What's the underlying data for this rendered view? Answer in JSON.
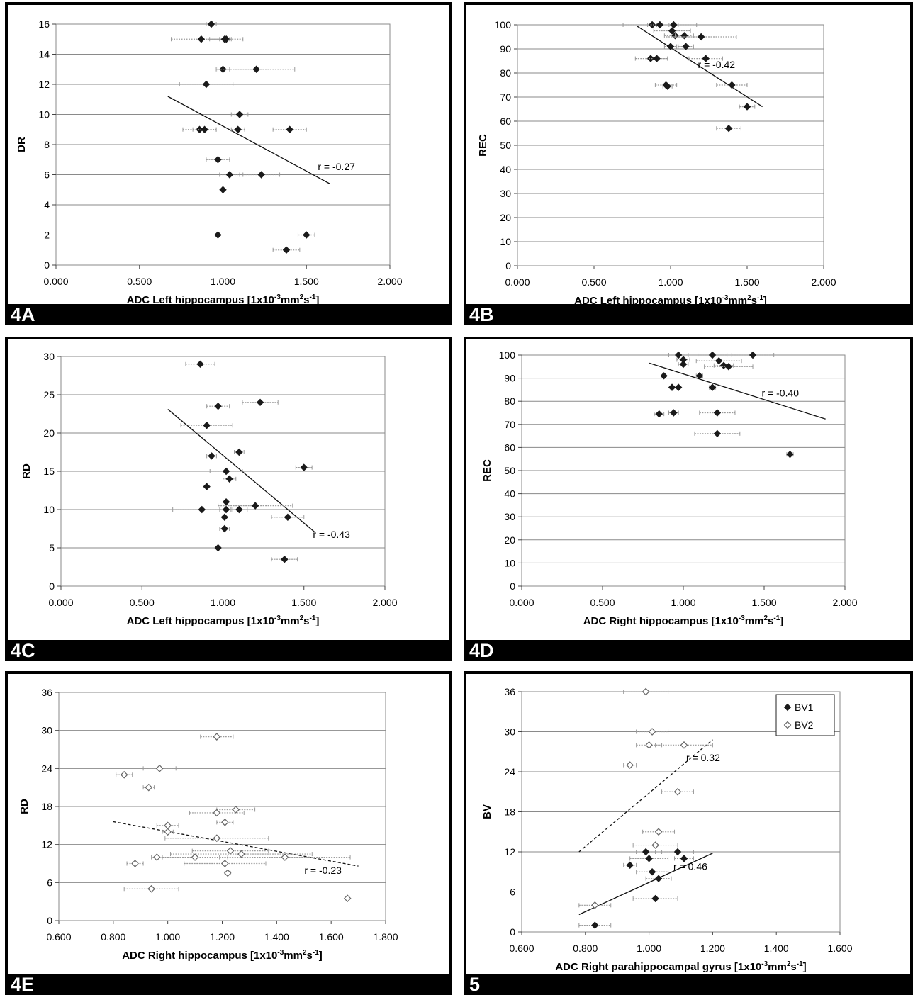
{
  "chart_data": [
    {
      "id": "4A",
      "type": "scatter",
      "panel_label": "4A",
      "ylabel": "DR",
      "xlabel": "ADC Left hippocampus [1x10",
      "xlabel_sup1": "-3",
      "xlabel_mid": "mm",
      "xlabel_sup2": "2",
      "xlabel_mid2": "s",
      "xlabel_sup3": "-1",
      "xlabel_end": "]",
      "xlim": [
        0,
        2
      ],
      "ylim": [
        0,
        16
      ],
      "xticks": [
        "0.000",
        "0.500",
        "1.000",
        "1.500",
        "2.000"
      ],
      "yticks": [
        "0",
        "2",
        "4",
        "6",
        "8",
        "10",
        "12",
        "14",
        "16"
      ],
      "grid": true,
      "series": [
        {
          "marker": "filled-diamond",
          "points": [
            {
              "x": 0.93,
              "y": 16,
              "xerr": 0.03
            },
            {
              "x": 0.87,
              "y": 15,
              "xerr": 0.18
            },
            {
              "x": 1.02,
              "y": 15,
              "xerr": 0.1
            },
            {
              "x": 1.01,
              "y": 15,
              "xerr": 0.03
            },
            {
              "x": 1.0,
              "y": 13,
              "xerr": 0.04
            },
            {
              "x": 1.2,
              "y": 13,
              "xerr": 0.23
            },
            {
              "x": 0.9,
              "y": 12,
              "xerr": 0.16
            },
            {
              "x": 1.1,
              "y": 10,
              "xerr": 0.05
            },
            {
              "x": 0.86,
              "y": 9,
              "xerr": 0.1
            },
            {
              "x": 0.89,
              "y": 9,
              "xerr": 0.07
            },
            {
              "x": 1.09,
              "y": 9,
              "xerr": 0.04
            },
            {
              "x": 1.4,
              "y": 9,
              "xerr": 0.1
            },
            {
              "x": 0.97,
              "y": 7,
              "xerr": 0.07
            },
            {
              "x": 1.04,
              "y": 6,
              "xerr": 0.06
            },
            {
              "x": 1.23,
              "y": 6,
              "xerr": 0.11
            },
            {
              "x": 1.0,
              "y": 5,
              "xerr": 0.0
            },
            {
              "x": 0.97,
              "y": 2,
              "xerr": 0.0
            },
            {
              "x": 1.5,
              "y": 2,
              "xerr": 0.05
            },
            {
              "x": 1.38,
              "y": 1,
              "xerr": 0.08
            }
          ]
        }
      ],
      "trendlines": [
        {
          "x1": 0.67,
          "y1": 11.2,
          "x2": 1.64,
          "y2": 5.4,
          "dashed": false
        }
      ],
      "annotations": [
        {
          "text": "r = -0.27",
          "x": 1.68,
          "y": 6.3
        }
      ]
    },
    {
      "id": "4B",
      "type": "scatter",
      "panel_label": "4B",
      "ylabel": "REC",
      "xlabel": "ADC Left hippocampus [1x10",
      "xlabel_sup1": "-3",
      "xlabel_mid": "mm",
      "xlabel_sup2": "2",
      "xlabel_mid2": "s",
      "xlabel_sup3": "-1",
      "xlabel_end": "]",
      "xlim": [
        0,
        2
      ],
      "ylim": [
        0,
        100
      ],
      "xticks": [
        "0.000",
        "0.500",
        "1.000",
        "1.500",
        "2.000"
      ],
      "yticks": [
        "0",
        "10",
        "20",
        "30",
        "40",
        "50",
        "60",
        "70",
        "80",
        "90",
        "100"
      ],
      "grid": true,
      "series": [
        {
          "marker": "filled-diamond",
          "points": [
            {
              "x": 0.88,
              "y": 100,
              "xerr": 0.03
            },
            {
              "x": 0.93,
              "y": 100,
              "xerr": 0.24
            },
            {
              "x": 1.02,
              "y": 100,
              "xerr": 0.03
            },
            {
              "x": 1.01,
              "y": 97.5,
              "xerr": 0.12
            },
            {
              "x": 1.03,
              "y": 95.5,
              "xerr": 0.07
            },
            {
              "x": 1.09,
              "y": 95.5,
              "xerr": 0.06
            },
            {
              "x": 1.2,
              "y": 95,
              "xerr": 0.23
            },
            {
              "x": 1.1,
              "y": 91,
              "xerr": 0.05
            },
            {
              "x": 1.0,
              "y": 91,
              "xerr": 0.04
            },
            {
              "x": 0.87,
              "y": 86,
              "xerr": 0.1
            },
            {
              "x": 0.91,
              "y": 86,
              "xerr": 0.07
            },
            {
              "x": 1.23,
              "y": 86,
              "xerr": 0.11
            },
            {
              "x": 0.97,
              "y": 75,
              "xerr": 0.07
            },
            {
              "x": 0.98,
              "y": 74.5,
              "xerr": 0.03
            },
            {
              "x": 1.4,
              "y": 75,
              "xerr": 0.1
            },
            {
              "x": 1.5,
              "y": 66,
              "xerr": 0.05
            },
            {
              "x": 1.38,
              "y": 57,
              "xerr": 0.08
            }
          ]
        }
      ],
      "trendlines": [
        {
          "x1": 0.78,
          "y1": 99.5,
          "x2": 1.6,
          "y2": 66,
          "dashed": false
        }
      ],
      "annotations": [
        {
          "text": "r = -0.42",
          "x": 1.3,
          "y": 82
        }
      ]
    },
    {
      "id": "4C",
      "type": "scatter",
      "panel_label": "4C",
      "ylabel": "RD",
      "xlabel": "ADC Left hippocampus [1x10",
      "xlabel_sup1": "-3",
      "xlabel_mid": "mm",
      "xlabel_sup2": "2",
      "xlabel_mid2": "s",
      "xlabel_sup3": "-1",
      "xlabel_end": "]",
      "xlim": [
        0,
        2
      ],
      "ylim": [
        0,
        30
      ],
      "xticks": [
        "0.000",
        "0.500",
        "1.000",
        "1.500",
        "2.000"
      ],
      "yticks": [
        "0",
        "5",
        "10",
        "15",
        "20",
        "25",
        "30"
      ],
      "grid": true,
      "series": [
        {
          "marker": "filled-diamond",
          "points": [
            {
              "x": 0.86,
              "y": 29,
              "xerr": 0.09
            },
            {
              "x": 0.97,
              "y": 23.5,
              "xerr": 0.07
            },
            {
              "x": 1.23,
              "y": 24,
              "xerr": 0.11
            },
            {
              "x": 0.9,
              "y": 21,
              "xerr": 0.16
            },
            {
              "x": 1.1,
              "y": 17.5,
              "xerr": 0.03
            },
            {
              "x": 0.93,
              "y": 17,
              "xerr": 0.03
            },
            {
              "x": 1.02,
              "y": 15,
              "xerr": 0.1
            },
            {
              "x": 1.5,
              "y": 15.5,
              "xerr": 0.05
            },
            {
              "x": 1.04,
              "y": 14,
              "xerr": 0.04
            },
            {
              "x": 0.9,
              "y": 13,
              "xerr": 0.0
            },
            {
              "x": 1.02,
              "y": 11,
              "xerr": 0.0
            },
            {
              "x": 1.2,
              "y": 10.5,
              "xerr": 0.23
            },
            {
              "x": 0.87,
              "y": 10,
              "xerr": 0.18
            },
            {
              "x": 1.02,
              "y": 10,
              "xerr": 0.04
            },
            {
              "x": 1.1,
              "y": 10,
              "xerr": 0.05
            },
            {
              "x": 1.01,
              "y": 9,
              "xerr": 0.0
            },
            {
              "x": 1.4,
              "y": 9,
              "xerr": 0.1
            },
            {
              "x": 1.01,
              "y": 7.5,
              "xerr": 0.03
            },
            {
              "x": 0.97,
              "y": 5,
              "xerr": 0.0
            },
            {
              "x": 1.38,
              "y": 3.5,
              "xerr": 0.08
            }
          ]
        }
      ],
      "trendlines": [
        {
          "x1": 0.66,
          "y1": 23.1,
          "x2": 1.57,
          "y2": 7,
          "dashed": false
        }
      ],
      "annotations": [
        {
          "text": "r =  -0.43",
          "x": 1.67,
          "y": 6.3
        }
      ]
    },
    {
      "id": "4D",
      "type": "scatter",
      "panel_label": "4D",
      "ylabel": "REC",
      "xlabel": "ADC Right hippocampus [1x10",
      "xlabel_sup1": "-3",
      "xlabel_mid": "mm",
      "xlabel_sup2": "2",
      "xlabel_mid2": "s",
      "xlabel_sup3": "-1",
      "xlabel_end": "]",
      "xlim": [
        0,
        2
      ],
      "ylim": [
        0,
        100
      ],
      "xticks": [
        "0.000",
        "0.500",
        "1.000",
        "1.500",
        "2.000"
      ],
      "yticks": [
        "0",
        "10",
        "20",
        "30",
        "40",
        "50",
        "60",
        "70",
        "80",
        "90",
        "100"
      ],
      "grid": true,
      "series": [
        {
          "marker": "filled-diamond",
          "points": [
            {
              "x": 0.97,
              "y": 100,
              "xerr": 0.06
            },
            {
              "x": 1.18,
              "y": 100,
              "xerr": 0.09
            },
            {
              "x": 1.43,
              "y": 100,
              "xerr": 0.13
            },
            {
              "x": 1.0,
              "y": 98,
              "xerr": 0.04
            },
            {
              "x": 1.22,
              "y": 97.5,
              "xerr": 0.14
            },
            {
              "x": 1.0,
              "y": 96,
              "xerr": 0.03
            },
            {
              "x": 1.25,
              "y": 95.5,
              "xerr": 0.06
            },
            {
              "x": 1.28,
              "y": 95,
              "xerr": 0.15
            },
            {
              "x": 0.88,
              "y": 91,
              "xerr": 0.01
            },
            {
              "x": 1.1,
              "y": 91,
              "xerr": 0.02
            },
            {
              "x": 0.93,
              "y": 86,
              "xerr": 0.0
            },
            {
              "x": 0.97,
              "y": 86,
              "xerr": 0.0
            },
            {
              "x": 1.18,
              "y": 86,
              "xerr": 0.02
            },
            {
              "x": 0.85,
              "y": 74.5,
              "xerr": 0.03
            },
            {
              "x": 0.94,
              "y": 75,
              "xerr": 0.03
            },
            {
              "x": 1.21,
              "y": 75,
              "xerr": 0.11
            },
            {
              "x": 1.21,
              "y": 66,
              "xerr": 0.14
            },
            {
              "x": 1.66,
              "y": 57,
              "xerr": 0.02
            }
          ]
        }
      ],
      "trendlines": [
        {
          "x1": 0.79,
          "y1": 96.5,
          "x2": 1.88,
          "y2": 72.3,
          "dashed": false
        }
      ],
      "annotations": [
        {
          "text": "r = -0.40",
          "x": 1.6,
          "y": 82
        }
      ]
    },
    {
      "id": "4E",
      "type": "scatter",
      "panel_label": "4E",
      "ylabel": "RD",
      "xlabel": "ADC Right hippocampus [1x10",
      "xlabel_sup1": "-3",
      "xlabel_mid": "mm",
      "xlabel_sup2": "2",
      "xlabel_mid2": "s",
      "xlabel_sup3": "-1",
      "xlabel_end": "]",
      "xlim": [
        0.6,
        1.8
      ],
      "ylim": [
        0,
        36
      ],
      "xticks": [
        "0.600",
        "0.800",
        "1.000",
        "1.200",
        "1.400",
        "1.600",
        "1.800"
      ],
      "yticks": [
        "0",
        "6",
        "12",
        "18",
        "24",
        "30",
        "36"
      ],
      "grid": true,
      "series": [
        {
          "marker": "open-diamond",
          "points": [
            {
              "x": 1.18,
              "y": 29,
              "xerr": 0.06
            },
            {
              "x": 0.97,
              "y": 24,
              "xerr": 0.06
            },
            {
              "x": 0.84,
              "y": 23,
              "xerr": 0.03
            },
            {
              "x": 0.93,
              "y": 21,
              "xerr": 0.02
            },
            {
              "x": 1.25,
              "y": 17.5,
              "xerr": 0.07
            },
            {
              "x": 1.18,
              "y": 17,
              "xerr": 0.1
            },
            {
              "x": 1.21,
              "y": 15.5,
              "xerr": 0.03
            },
            {
              "x": 1.0,
              "y": 15,
              "xerr": 0.04
            },
            {
              "x": 1.0,
              "y": 14,
              "xerr": 0.02
            },
            {
              "x": 1.18,
              "y": 13,
              "xerr": 0.19
            },
            {
              "x": 1.23,
              "y": 11,
              "xerr": 0.14
            },
            {
              "x": 1.1,
              "y": 10,
              "xerr": 0.12
            },
            {
              "x": 1.27,
              "y": 10.5,
              "xerr": 0.26
            },
            {
              "x": 1.43,
              "y": 10,
              "xerr": 0.24
            },
            {
              "x": 0.96,
              "y": 10,
              "xerr": 0.02
            },
            {
              "x": 0.88,
              "y": 9,
              "xerr": 0.03
            },
            {
              "x": 1.21,
              "y": 9,
              "xerr": 0.15
            },
            {
              "x": 1.22,
              "y": 7.5,
              "xerr": 0.01
            },
            {
              "x": 0.94,
              "y": 5,
              "xerr": 0.1
            },
            {
              "x": 1.66,
              "y": 3.5,
              "xerr": 0.0
            }
          ]
        }
      ],
      "trendlines": [
        {
          "x1": 0.8,
          "y1": 15.6,
          "x2": 1.7,
          "y2": 8.6,
          "dashed": true
        }
      ],
      "annotations": [
        {
          "text": "r = -0.23",
          "x": 1.57,
          "y": 7.4
        }
      ]
    },
    {
      "id": "5",
      "type": "scatter",
      "panel_label": "5",
      "ylabel": "BV",
      "xlabel": "ADC Right parahippocampal gyrus [1x10",
      "xlabel_sup1": "-3",
      "xlabel_mid": "mm",
      "xlabel_sup2": "2",
      "xlabel_mid2": "s",
      "xlabel_sup3": "-1",
      "xlabel_end": "]",
      "xlim": [
        0.6,
        1.6
      ],
      "ylim": [
        0,
        36
      ],
      "xticks": [
        "0.600",
        "0.800",
        "1.000",
        "1.200",
        "1.400",
        "1.600"
      ],
      "yticks": [
        "0",
        "6",
        "12",
        "18",
        "24",
        "30",
        "36"
      ],
      "grid": true,
      "legend": {
        "position": "top-right",
        "entries": [
          "BV1",
          "BV2"
        ]
      },
      "series": [
        {
          "name": "BV1",
          "marker": "filled-diamond",
          "points": [
            {
              "x": 0.99,
              "y": 12,
              "xerr": 0.03
            },
            {
              "x": 1.09,
              "y": 12,
              "xerr": 0.05
            },
            {
              "x": 1.0,
              "y": 11,
              "xerr": 0.06
            },
            {
              "x": 1.11,
              "y": 11,
              "xerr": 0.03
            },
            {
              "x": 0.94,
              "y": 10,
              "xerr": 0.02
            },
            {
              "x": 1.01,
              "y": 9,
              "xerr": 0.05
            },
            {
              "x": 1.03,
              "y": 8,
              "xerr": 0.04
            },
            {
              "x": 1.02,
              "y": 5,
              "xerr": 0.07
            },
            {
              "x": 0.83,
              "y": 1,
              "xerr": 0.05
            }
          ]
        },
        {
          "name": "BV2",
          "marker": "open-diamond",
          "points": [
            {
              "x": 0.99,
              "y": 36,
              "xerr": 0.07
            },
            {
              "x": 1.01,
              "y": 30,
              "xerr": 0.05
            },
            {
              "x": 1.0,
              "y": 28,
              "xerr": 0.04
            },
            {
              "x": 1.11,
              "y": 28,
              "xerr": 0.09
            },
            {
              "x": 0.94,
              "y": 25,
              "xerr": 0.02
            },
            {
              "x": 1.09,
              "y": 21,
              "xerr": 0.05
            },
            {
              "x": 1.03,
              "y": 15,
              "xerr": 0.05
            },
            {
              "x": 1.02,
              "y": 13,
              "xerr": 0.07
            },
            {
              "x": 0.83,
              "y": 4,
              "xerr": 0.05
            }
          ]
        }
      ],
      "trendlines": [
        {
          "x1": 0.78,
          "y1": 12,
          "x2": 1.2,
          "y2": 28.8,
          "dashed": true
        },
        {
          "x1": 0.78,
          "y1": 2.6,
          "x2": 1.2,
          "y2": 11.8,
          "dashed": false
        }
      ],
      "annotations": [
        {
          "text": "r = 0.32",
          "x": 1.17,
          "y": 25.6
        },
        {
          "text": "r = 0.46",
          "x": 1.13,
          "y": 9.3
        }
      ]
    }
  ]
}
